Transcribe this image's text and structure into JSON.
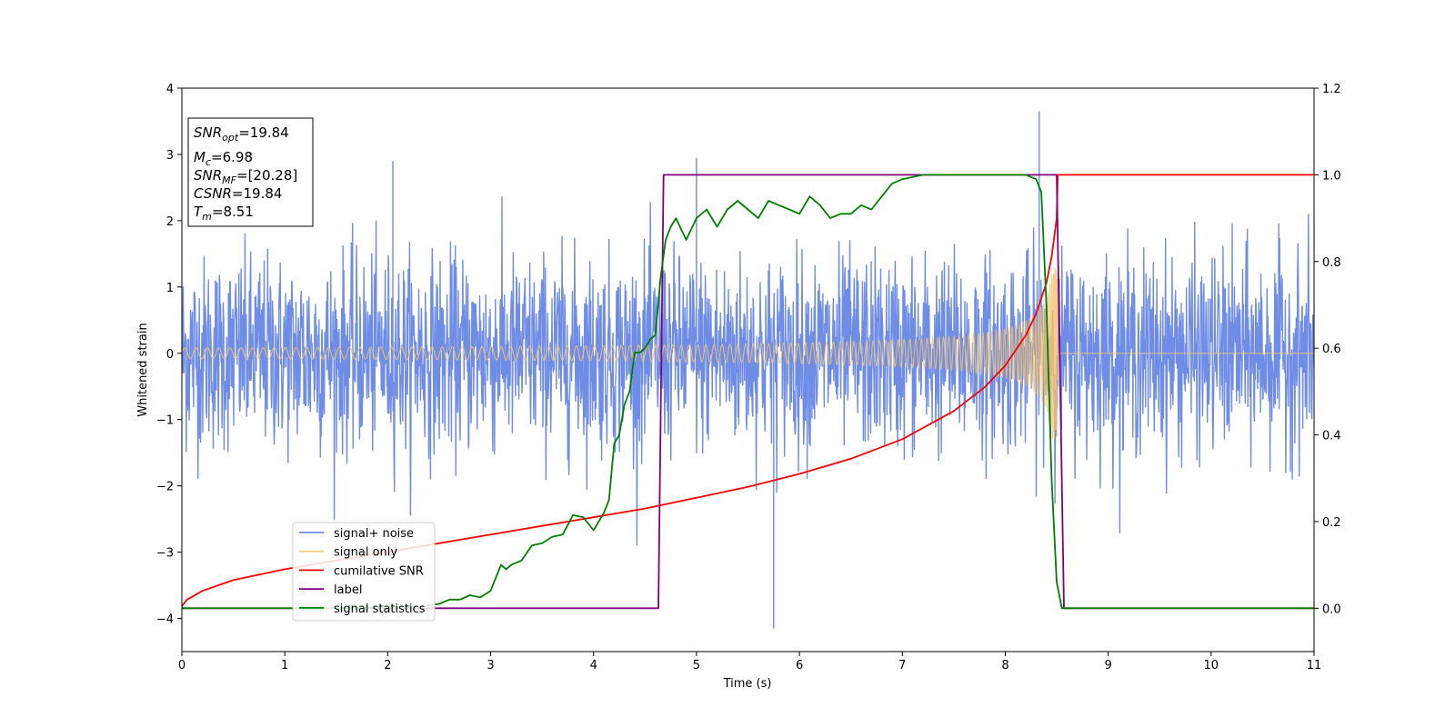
{
  "chart_data": {
    "type": "line",
    "xlabel": "Time (s)",
    "ylabel": "Whitened strain",
    "y2label": "",
    "xlim": [
      0,
      11
    ],
    "ylim": [
      -4.5,
      4.0
    ],
    "y2lim": [
      -0.1,
      1.2
    ],
    "xticks": [
      "0",
      "1",
      "2",
      "3",
      "4",
      "5",
      "6",
      "7",
      "8",
      "9",
      "10",
      "11"
    ],
    "yticks": [
      "−4",
      "−3",
      "−2",
      "−1",
      "0",
      "1",
      "2",
      "3",
      "4"
    ],
    "y2ticks": [
      "0.0",
      "0.2",
      "0.4",
      "0.6",
      "0.8",
      "1.0",
      "1.2"
    ],
    "grid": false,
    "legend_position": "lower-left",
    "annotation": {
      "lines": [
        {
          "label": "SNR",
          "sub": "opt",
          "value": "=19.84"
        },
        {
          "label": "M",
          "sub": "c",
          "value": "=6.98"
        },
        {
          "label": "SNR",
          "sub": "MF",
          "value": "=[20.28]"
        },
        {
          "label": "CSNR",
          "sub": "",
          "value": "=19.84"
        },
        {
          "label": "T",
          "sub": "m",
          "value": "=8.51"
        }
      ]
    },
    "series": [
      {
        "name": "signal+ noise",
        "axis": "left",
        "color": "#6f8de6",
        "description_kind": "noise",
        "noise_envelope": {
          "typical_max": 2.0,
          "peak_max": 3.65,
          "peak_min": -4.15
        },
        "t_range": [
          0,
          11
        ]
      },
      {
        "name": "signal only",
        "axis": "left",
        "color": "#f5c26b",
        "description_kind": "chirp",
        "amplitude_start": 0.08,
        "amplitude_end": 1.3,
        "t_merge": 8.51,
        "t_range": [
          0,
          11
        ]
      },
      {
        "name": "cumilative SNR",
        "axis": "right",
        "color": "#ff0000",
        "x": [
          0.0,
          0.05,
          0.2,
          0.5,
          1.0,
          1.5,
          2.0,
          2.5,
          3.0,
          3.5,
          4.0,
          4.5,
          5.0,
          5.5,
          6.0,
          6.5,
          7.0,
          7.5,
          7.8,
          8.0,
          8.2,
          8.3,
          8.4,
          8.45,
          8.5,
          8.51,
          8.55,
          11.0
        ],
        "y": [
          0.005,
          0.02,
          0.04,
          0.065,
          0.09,
          0.11,
          0.13,
          0.15,
          0.17,
          0.19,
          0.21,
          0.23,
          0.255,
          0.28,
          0.31,
          0.345,
          0.39,
          0.455,
          0.51,
          0.56,
          0.63,
          0.68,
          0.75,
          0.81,
          0.9,
          1.0,
          1.0,
          1.0
        ]
      },
      {
        "name": "label",
        "axis": "right",
        "color": "#800080",
        "x": [
          0.0,
          4.63,
          4.68,
          8.5,
          8.57,
          11.0
        ],
        "y": [
          0.0,
          0.0,
          1.0,
          1.0,
          0.0,
          0.0
        ]
      },
      {
        "name": "signal statistics",
        "axis": "right",
        "color": "#008000",
        "x": [
          0.0,
          0.5,
          1.0,
          1.5,
          2.0,
          2.3,
          2.5,
          2.6,
          2.7,
          2.8,
          2.9,
          3.0,
          3.1,
          3.15,
          3.2,
          3.3,
          3.4,
          3.5,
          3.6,
          3.7,
          3.8,
          3.9,
          4.0,
          4.05,
          4.1,
          4.15,
          4.2,
          4.25,
          4.3,
          4.35,
          4.4,
          4.45,
          4.5,
          4.55,
          4.6,
          4.65,
          4.7,
          4.75,
          4.8,
          4.9,
          5.0,
          5.1,
          5.2,
          5.3,
          5.4,
          5.5,
          5.6,
          5.7,
          5.8,
          5.9,
          6.0,
          6.1,
          6.2,
          6.3,
          6.4,
          6.5,
          6.6,
          6.7,
          6.8,
          6.9,
          7.0,
          7.2,
          7.5,
          8.0,
          8.2,
          8.3,
          8.35,
          8.4,
          8.45,
          8.5,
          8.55,
          8.6,
          11.0
        ],
        "y": [
          0.0,
          0.0,
          0.0,
          0.0,
          0.001,
          0.003,
          0.01,
          0.02,
          0.02,
          0.03,
          0.025,
          0.04,
          0.1,
          0.09,
          0.1,
          0.11,
          0.145,
          0.15,
          0.165,
          0.17,
          0.215,
          0.21,
          0.18,
          0.2,
          0.22,
          0.25,
          0.38,
          0.4,
          0.47,
          0.5,
          0.59,
          0.59,
          0.6,
          0.62,
          0.63,
          0.76,
          0.85,
          0.88,
          0.9,
          0.85,
          0.9,
          0.92,
          0.88,
          0.92,
          0.94,
          0.92,
          0.9,
          0.94,
          0.93,
          0.92,
          0.91,
          0.95,
          0.93,
          0.9,
          0.91,
          0.91,
          0.93,
          0.92,
          0.95,
          0.98,
          0.99,
          1.0,
          1.0,
          1.0,
          1.0,
          0.99,
          0.96,
          0.7,
          0.3,
          0.06,
          0.0,
          0.0,
          0.0
        ]
      }
    ]
  }
}
